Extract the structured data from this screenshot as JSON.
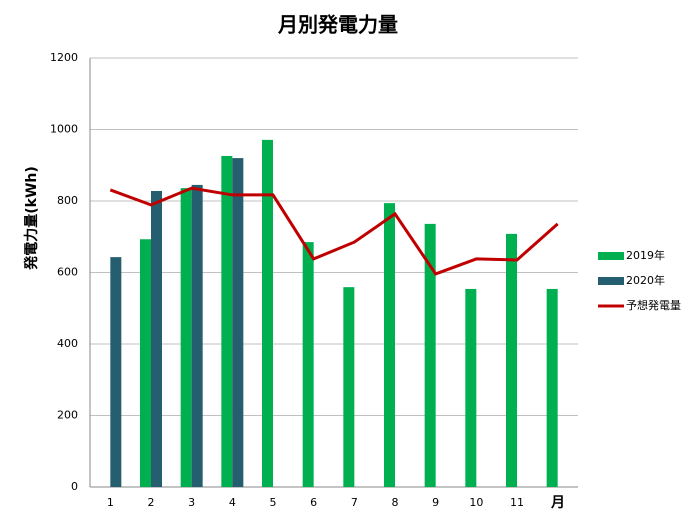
{
  "chart_data": {
    "type": "bar-line",
    "title": "月別発電力量",
    "y_label": "発電力量(kWh)",
    "x_label": "月",
    "categories": [
      "1",
      "2",
      "3",
      "4",
      "5",
      "6",
      "7",
      "8",
      "9",
      "10",
      "11",
      null
    ],
    "series": [
      {
        "name": "2019年",
        "type": "bar",
        "color": "#00b050",
        "values": [
          null,
          693,
          836,
          926,
          971,
          685,
          559,
          794,
          736,
          554,
          708,
          554
        ]
      },
      {
        "name": "2020年",
        "type": "bar",
        "color": "#255e6e",
        "values": [
          643,
          828,
          845,
          920,
          null,
          null,
          null,
          null,
          null,
          null,
          null,
          null
        ]
      },
      {
        "name": "予想発電量",
        "type": "line",
        "color": "#c00000",
        "values": [
          831,
          789,
          836,
          817,
          817,
          638,
          685,
          764,
          596,
          638,
          635,
          736
        ]
      }
    ],
    "ylim": [
      0,
      1200
    ],
    "yticks": [
      0,
      200,
      400,
      600,
      800,
      1000,
      1200
    ],
    "grid": true,
    "legend": "right"
  }
}
